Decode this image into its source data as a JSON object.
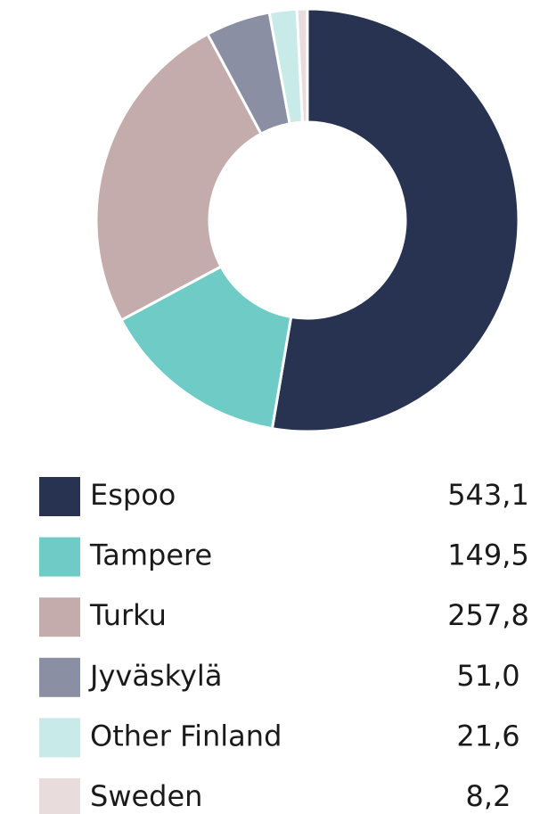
{
  "chart_data": {
    "type": "pie",
    "donut": true,
    "categories": [
      "Espoo",
      "Tampere",
      "Turku",
      "Jyväskylä",
      "Other Finland",
      "Sweden"
    ],
    "values": [
      543.1,
      149.5,
      257.8,
      51.0,
      21.6,
      8.2
    ],
    "value_labels": [
      "543,1",
      "149,5",
      "257,8",
      "51,0",
      "21,6",
      "8,2"
    ],
    "colors": [
      "#283352",
      "#6ecbc6",
      "#c4acac",
      "#8b8fa3",
      "#c8eae8",
      "#e8dcdc"
    ]
  }
}
